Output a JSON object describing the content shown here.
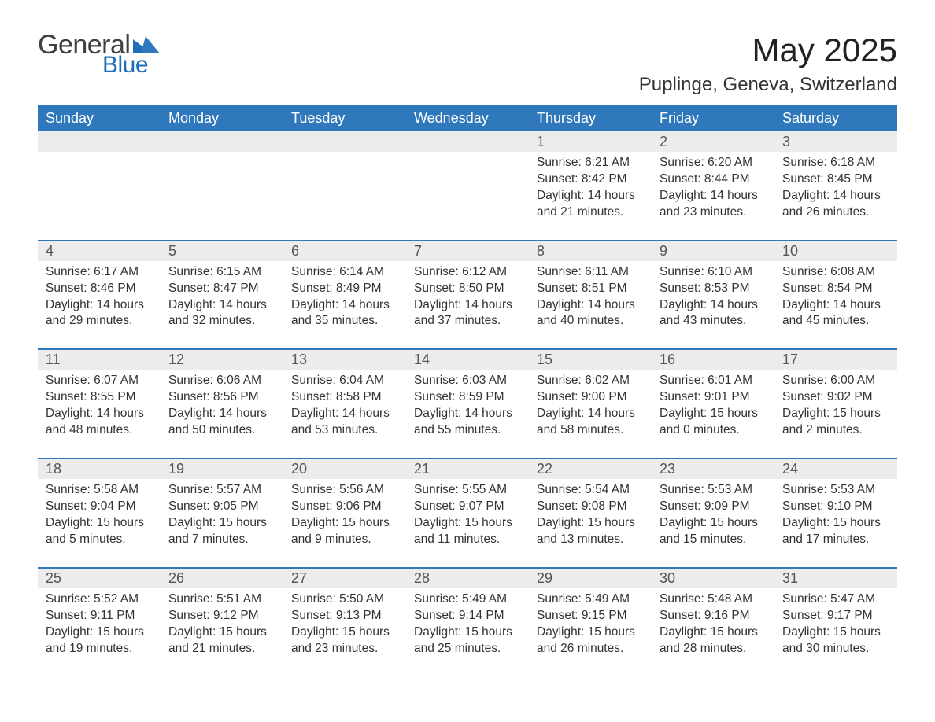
{
  "brand": {
    "part1": "General",
    "part2": "Blue"
  },
  "title": "May 2025",
  "location": "Puplinge, Geneva, Switzerland",
  "colors": {
    "header_bg": "#2f78bc",
    "header_text": "#ffffff",
    "daynum_bg": "#ececec",
    "rule": "#2f78bc",
    "body_text": "#333333",
    "logo_blue": "#1e6fb8"
  },
  "weekdays": [
    "Sunday",
    "Monday",
    "Tuesday",
    "Wednesday",
    "Thursday",
    "Friday",
    "Saturday"
  ],
  "weeks": [
    [
      null,
      null,
      null,
      null,
      {
        "d": "1",
        "sr": "6:21 AM",
        "ss": "8:42 PM",
        "dl": "14 hours and 21 minutes."
      },
      {
        "d": "2",
        "sr": "6:20 AM",
        "ss": "8:44 PM",
        "dl": "14 hours and 23 minutes."
      },
      {
        "d": "3",
        "sr": "6:18 AM",
        "ss": "8:45 PM",
        "dl": "14 hours and 26 minutes."
      }
    ],
    [
      {
        "d": "4",
        "sr": "6:17 AM",
        "ss": "8:46 PM",
        "dl": "14 hours and 29 minutes."
      },
      {
        "d": "5",
        "sr": "6:15 AM",
        "ss": "8:47 PM",
        "dl": "14 hours and 32 minutes."
      },
      {
        "d": "6",
        "sr": "6:14 AM",
        "ss": "8:49 PM",
        "dl": "14 hours and 35 minutes."
      },
      {
        "d": "7",
        "sr": "6:12 AM",
        "ss": "8:50 PM",
        "dl": "14 hours and 37 minutes."
      },
      {
        "d": "8",
        "sr": "6:11 AM",
        "ss": "8:51 PM",
        "dl": "14 hours and 40 minutes."
      },
      {
        "d": "9",
        "sr": "6:10 AM",
        "ss": "8:53 PM",
        "dl": "14 hours and 43 minutes."
      },
      {
        "d": "10",
        "sr": "6:08 AM",
        "ss": "8:54 PM",
        "dl": "14 hours and 45 minutes."
      }
    ],
    [
      {
        "d": "11",
        "sr": "6:07 AM",
        "ss": "8:55 PM",
        "dl": "14 hours and 48 minutes."
      },
      {
        "d": "12",
        "sr": "6:06 AM",
        "ss": "8:56 PM",
        "dl": "14 hours and 50 minutes."
      },
      {
        "d": "13",
        "sr": "6:04 AM",
        "ss": "8:58 PM",
        "dl": "14 hours and 53 minutes."
      },
      {
        "d": "14",
        "sr": "6:03 AM",
        "ss": "8:59 PM",
        "dl": "14 hours and 55 minutes."
      },
      {
        "d": "15",
        "sr": "6:02 AM",
        "ss": "9:00 PM",
        "dl": "14 hours and 58 minutes."
      },
      {
        "d": "16",
        "sr": "6:01 AM",
        "ss": "9:01 PM",
        "dl": "15 hours and 0 minutes."
      },
      {
        "d": "17",
        "sr": "6:00 AM",
        "ss": "9:02 PM",
        "dl": "15 hours and 2 minutes."
      }
    ],
    [
      {
        "d": "18",
        "sr": "5:58 AM",
        "ss": "9:04 PM",
        "dl": "15 hours and 5 minutes."
      },
      {
        "d": "19",
        "sr": "5:57 AM",
        "ss": "9:05 PM",
        "dl": "15 hours and 7 minutes."
      },
      {
        "d": "20",
        "sr": "5:56 AM",
        "ss": "9:06 PM",
        "dl": "15 hours and 9 minutes."
      },
      {
        "d": "21",
        "sr": "5:55 AM",
        "ss": "9:07 PM",
        "dl": "15 hours and 11 minutes."
      },
      {
        "d": "22",
        "sr": "5:54 AM",
        "ss": "9:08 PM",
        "dl": "15 hours and 13 minutes."
      },
      {
        "d": "23",
        "sr": "5:53 AM",
        "ss": "9:09 PM",
        "dl": "15 hours and 15 minutes."
      },
      {
        "d": "24",
        "sr": "5:53 AM",
        "ss": "9:10 PM",
        "dl": "15 hours and 17 minutes."
      }
    ],
    [
      {
        "d": "25",
        "sr": "5:52 AM",
        "ss": "9:11 PM",
        "dl": "15 hours and 19 minutes."
      },
      {
        "d": "26",
        "sr": "5:51 AM",
        "ss": "9:12 PM",
        "dl": "15 hours and 21 minutes."
      },
      {
        "d": "27",
        "sr": "5:50 AM",
        "ss": "9:13 PM",
        "dl": "15 hours and 23 minutes."
      },
      {
        "d": "28",
        "sr": "5:49 AM",
        "ss": "9:14 PM",
        "dl": "15 hours and 25 minutes."
      },
      {
        "d": "29",
        "sr": "5:49 AM",
        "ss": "9:15 PM",
        "dl": "15 hours and 26 minutes."
      },
      {
        "d": "30",
        "sr": "5:48 AM",
        "ss": "9:16 PM",
        "dl": "15 hours and 28 minutes."
      },
      {
        "d": "31",
        "sr": "5:47 AM",
        "ss": "9:17 PM",
        "dl": "15 hours and 30 minutes."
      }
    ]
  ],
  "labels": {
    "sunrise": "Sunrise: ",
    "sunset": "Sunset: ",
    "daylight": "Daylight: "
  }
}
